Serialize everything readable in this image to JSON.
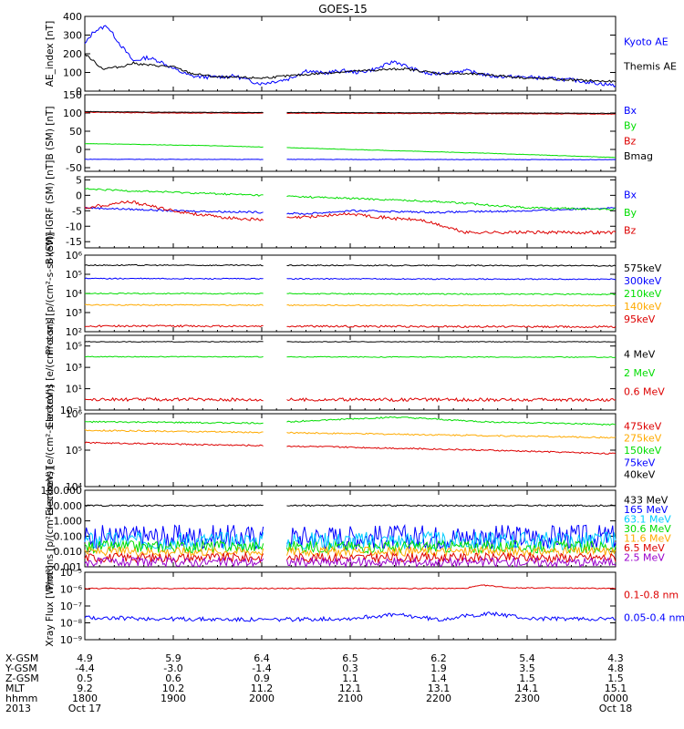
{
  "title": "GOES-15",
  "colors": {
    "black": "#000000",
    "blue": "#0000ff",
    "green": "#00dd00",
    "red": "#dd0000",
    "orange": "#ffaa00",
    "cyan": "#00ccff",
    "darkred": "#aa0000",
    "purple": "#9900cc"
  },
  "ephemeris": {
    "row_labels": [
      "X-GSM",
      "Y-GSM",
      "Z-GSM",
      "MLT",
      "hhmm",
      "2013"
    ],
    "columns": [
      {
        "x": "4.9",
        "y": "-4.4",
        "z": "0.5",
        "mlt": "9.2",
        "hhmm": "1800",
        "date": "Oct 17"
      },
      {
        "x": "5.9",
        "y": "-3.0",
        "z": "0.6",
        "mlt": "10.2",
        "hhmm": "1900",
        "date": ""
      },
      {
        "x": "6.4",
        "y": "-1.4",
        "z": "0.9",
        "mlt": "11.2",
        "hhmm": "2000",
        "date": ""
      },
      {
        "x": "6.5",
        "y": "0.3",
        "z": "1.1",
        "mlt": "12.1",
        "hhmm": "2100",
        "date": ""
      },
      {
        "x": "6.2",
        "y": "1.9",
        "z": "1.4",
        "mlt": "13.1",
        "hhmm": "2200",
        "date": ""
      },
      {
        "x": "5.4",
        "y": "3.5",
        "z": "1.5",
        "mlt": "14.1",
        "hhmm": "2300",
        "date": ""
      },
      {
        "x": "4.3",
        "y": "4.8",
        "z": "1.5",
        "mlt": "15.1",
        "hhmm": "0000",
        "date": "Oct 18"
      }
    ]
  },
  "chart_data": [
    {
      "type": "line",
      "ylabel": "AE_index [nT]",
      "ylim": [
        0,
        400
      ],
      "scale": "linear",
      "ticks": [
        {
          "v": 0,
          "label": "0"
        },
        {
          "v": 100,
          "label": "100"
        },
        {
          "v": 200,
          "label": "200"
        },
        {
          "v": 300,
          "label": "300"
        },
        {
          "v": 400,
          "label": "400"
        }
      ],
      "series": [
        {
          "name": "Kyoto AE",
          "color": "#0000ff",
          "base": 100,
          "noise": 10,
          "pts": [
            [
              0,
              250
            ],
            [
              0.1,
              320
            ],
            [
              0.25,
              350
            ],
            [
              0.4,
              250
            ],
            [
              0.55,
              160
            ],
            [
              0.7,
              180
            ],
            [
              0.85,
              160
            ],
            [
              1.0,
              120
            ],
            [
              1.2,
              80
            ],
            [
              1.4,
              75
            ],
            [
              1.7,
              80
            ],
            [
              1.9,
              50
            ],
            [
              2.0,
              40
            ],
            [
              2.3,
              65
            ],
            [
              2.5,
              110
            ],
            [
              2.7,
              95
            ],
            [
              2.9,
              110
            ],
            [
              3.1,
              100
            ],
            [
              3.3,
              120
            ],
            [
              3.5,
              160
            ],
            [
              3.7,
              120
            ],
            [
              3.9,
              90
            ],
            [
              4.1,
              100
            ],
            [
              4.3,
              110
            ],
            [
              4.6,
              80
            ],
            [
              5.0,
              75
            ],
            [
              5.5,
              60
            ],
            [
              6.0,
              30
            ]
          ]
        },
        {
          "name": "Themis AE",
          "color": "#000000",
          "noise": 6,
          "pts": [
            [
              0,
              200
            ],
            [
              0.2,
              120
            ],
            [
              0.4,
              130
            ],
            [
              0.55,
              150
            ],
            [
              0.7,
              140
            ],
            [
              1.0,
              130
            ],
            [
              1.2,
              95
            ],
            [
              1.5,
              75
            ],
            [
              2.0,
              70
            ],
            [
              2.4,
              85
            ],
            [
              2.8,
              100
            ],
            [
              3.2,
              110
            ],
            [
              3.6,
              120
            ],
            [
              4.0,
              95
            ],
            [
              4.5,
              90
            ],
            [
              5.0,
              70
            ],
            [
              5.5,
              60
            ],
            [
              6.0,
              50
            ]
          ]
        }
      ]
    },
    {
      "type": "line",
      "ylabel": "B (SM) [nT]",
      "ylim": [
        -60,
        150
      ],
      "scale": "linear",
      "ticks": [
        {
          "v": -50,
          "label": "-50"
        },
        {
          "v": 0,
          "label": "0"
        },
        {
          "v": 50,
          "label": "50"
        },
        {
          "v": 100,
          "label": "100"
        },
        {
          "v": 150,
          "label": "150"
        }
      ],
      "series": [
        {
          "name": "Bx",
          "color": "#0000ff",
          "noise": 0.6,
          "pts": [
            [
              0,
              -27
            ],
            [
              6,
              -28
            ]
          ]
        },
        {
          "name": "By",
          "color": "#00dd00",
          "noise": 0.6,
          "pts": [
            [
              0,
              16
            ],
            [
              1.5,
              10
            ],
            [
              3,
              0
            ],
            [
              4.5,
              -10
            ],
            [
              6,
              -22
            ]
          ]
        },
        {
          "name": "Bz",
          "color": "#dd0000",
          "noise": 0.8,
          "pts": [
            [
              0,
              102
            ],
            [
              1.0,
              100
            ],
            [
              3.0,
              99
            ],
            [
              5.0,
              98
            ],
            [
              6.0,
              97
            ]
          ]
        },
        {
          "name": "Bmag",
          "color": "#000000",
          "noise": 0.6,
          "pts": [
            [
              0,
              104
            ],
            [
              1.0,
              102
            ],
            [
              3.0,
              101
            ],
            [
              5.0,
              100
            ],
            [
              6.0,
              99
            ]
          ]
        }
      ]
    },
    {
      "type": "line",
      "ylabel": "B (SM)-IGRF (SM) [nT]",
      "ylim": [
        -17,
        6
      ],
      "scale": "linear",
      "ticks": [
        {
          "v": -15,
          "label": "-15"
        },
        {
          "v": -10,
          "label": "-10"
        },
        {
          "v": -5,
          "label": "-5"
        },
        {
          "v": 0,
          "label": "0"
        },
        {
          "v": 5,
          "label": "5"
        }
      ],
      "series": [
        {
          "name": "Bx",
          "color": "#0000ff",
          "noise": 0.3,
          "pts": [
            [
              0,
              -4
            ],
            [
              1,
              -5
            ],
            [
              2,
              -5.5
            ],
            [
              2.5,
              -6
            ],
            [
              3,
              -5
            ],
            [
              4,
              -5.5
            ],
            [
              5,
              -5
            ],
            [
              6,
              -4
            ]
          ]
        },
        {
          "name": "By",
          "color": "#00dd00",
          "noise": 0.3,
          "pts": [
            [
              0,
              2
            ],
            [
              1,
              1
            ],
            [
              2,
              0
            ],
            [
              3,
              -1
            ],
            [
              4,
              -2
            ],
            [
              5,
              -4
            ],
            [
              6,
              -4.5
            ]
          ]
        },
        {
          "name": "Bz",
          "color": "#dd0000",
          "noise": 0.5,
          "pts": [
            [
              0,
              -4
            ],
            [
              0.5,
              -2
            ],
            [
              1,
              -5
            ],
            [
              1.5,
              -7
            ],
            [
              2,
              -8
            ],
            [
              2.5,
              -7
            ],
            [
              3,
              -6
            ],
            [
              3.5,
              -7.5
            ],
            [
              3.8,
              -8
            ],
            [
              4.3,
              -12
            ],
            [
              5,
              -12
            ],
            [
              6,
              -12
            ]
          ]
        }
      ]
    },
    {
      "type": "line",
      "ylabel": "Protons [p/(cm²-s-sr-keV)]",
      "ylim": [
        100,
        1000000
      ],
      "scale": "log",
      "ticks": [
        {
          "v": 100,
          "label": "10²"
        },
        {
          "v": 1000,
          "label": "10³"
        },
        {
          "v": 10000,
          "label": "10⁴"
        },
        {
          "v": 100000,
          "label": "10⁵"
        },
        {
          "v": 1000000,
          "label": "10⁶"
        }
      ],
      "series": [
        {
          "name": "575keV",
          "color": "#000000",
          "noise": 0.03,
          "pts": [
            [
              0,
              300000
            ],
            [
              6,
              280000
            ]
          ]
        },
        {
          "name": "300keV",
          "color": "#0000ff",
          "noise": 0.03,
          "pts": [
            [
              0,
              60000
            ],
            [
              6,
              55000
            ]
          ]
        },
        {
          "name": "210keV",
          "color": "#00dd00",
          "noise": 0.03,
          "pts": [
            [
              0,
              10000
            ],
            [
              6,
              9000
            ]
          ]
        },
        {
          "name": "140keV",
          "color": "#ffaa00",
          "noise": 0.03,
          "pts": [
            [
              0,
              2500
            ],
            [
              6,
              2300
            ]
          ]
        },
        {
          "name": "95keV",
          "color": "#dd0000",
          "noise": 0.05,
          "pts": [
            [
              0,
              200
            ],
            [
              6,
              180
            ]
          ]
        }
      ]
    },
    {
      "type": "line",
      "ylabel": "Electrons [e/(cm²-s-sr)]",
      "ylim": [
        0.1,
        1000000
      ],
      "scale": "log",
      "ticks": [
        {
          "v": 0.1,
          "label": "10⁻¹"
        },
        {
          "v": 10,
          "label": "10¹"
        },
        {
          "v": 1000,
          "label": "10³"
        },
        {
          "v": 100000,
          "label": "10⁵"
        }
      ],
      "series": [
        {
          "name": "4 MeV",
          "color": "#000000",
          "noise": 0.03,
          "pts": [
            [
              0,
              250000
            ],
            [
              6,
              250000
            ]
          ]
        },
        {
          "name": "2 MeV",
          "color": "#00dd00",
          "noise": 0.04,
          "pts": [
            [
              0,
              10000
            ],
            [
              6,
              9000
            ]
          ]
        },
        {
          "name": "0.6 MeV",
          "color": "#dd0000",
          "noise": 0.15,
          "pts": [
            [
              0,
              1
            ],
            [
              6,
              0.9
            ]
          ]
        }
      ]
    },
    {
      "type": "line",
      "ylabel": "Electrons [e/(cm²-s-sr-keV)]",
      "ylim": [
        10000,
        1000000
      ],
      "scale": "log",
      "ticks": [
        {
          "v": 10000,
          "label": "10⁴"
        },
        {
          "v": 100000,
          "label": "10⁵"
        },
        {
          "v": 1000000,
          "label": "10⁶"
        }
      ],
      "series": [
        {
          "name": "475keV",
          "color": "#dd0000",
          "noise": 0.02,
          "pts": [
            [
              0,
              160000
            ],
            [
              6,
              80000
            ]
          ]
        },
        {
          "name": "275keV",
          "color": "#ffaa00",
          "noise": 0.02,
          "pts": [
            [
              0,
              350000
            ],
            [
              6,
              220000
            ]
          ]
        },
        {
          "name": "150keV",
          "color": "#00dd00",
          "noise": 0.02,
          "pts": [
            [
              0,
              600000
            ],
            [
              2,
              550000
            ],
            [
              3.5,
              800000
            ],
            [
              4.5,
              600000
            ],
            [
              6,
              500000
            ]
          ]
        },
        {
          "name": "75keV",
          "color": "#0000ff",
          "noise": 0.02,
          "pts": [
            [
              0,
              1200000
            ],
            [
              6,
              1200000
            ]
          ]
        },
        {
          "name": "40keV",
          "color": "#000000",
          "noise": 0.02,
          "pts": [
            [
              0,
              2000000
            ],
            [
              6,
              2000000
            ]
          ]
        }
      ]
    },
    {
      "type": "line",
      "ylabel": "Protons [p/(cm²-s-sr-keV)]",
      "ylim": [
        0.001,
        100
      ],
      "scale": "log",
      "ticks": [
        {
          "v": 0.001,
          "label": "0.001"
        },
        {
          "v": 0.01,
          "label": "0.010"
        },
        {
          "v": 0.1,
          "label": "0.100"
        },
        {
          "v": 1,
          "label": "1.000"
        },
        {
          "v": 10,
          "label": "10.000"
        },
        {
          "v": 100,
          "label": "100.000"
        }
      ],
      "series": [
        {
          "name": "433 MeV",
          "color": "#000000",
          "noise": 0.05,
          "pts": [
            [
              0,
              10
            ],
            [
              6,
              10
            ]
          ]
        },
        {
          "name": "165 MeV",
          "color": "#0000ff",
          "noise": 0.8,
          "pts": [
            [
              0,
              0.09
            ],
            [
              6,
              0.09
            ]
          ]
        },
        {
          "name": "63.1 MeV",
          "color": "#00ccff",
          "noise": 0.6,
          "pts": [
            [
              0,
              0.05
            ],
            [
              6,
              0.05
            ]
          ]
        },
        {
          "name": "30.6 MeV",
          "color": "#00dd00",
          "noise": 0.4,
          "pts": [
            [
              0,
              0.02
            ],
            [
              6,
              0.02
            ]
          ]
        },
        {
          "name": "11.6 MeV",
          "color": "#ffaa00",
          "noise": 0.3,
          "pts": [
            [
              0,
              0.01
            ],
            [
              6,
              0.01
            ]
          ]
        },
        {
          "name": "6.5 MeV",
          "color": "#dd0000",
          "noise": 0.3,
          "pts": [
            [
              0,
              0.004
            ],
            [
              6,
              0.004
            ]
          ]
        },
        {
          "name": "2.5 MeV",
          "color": "#9900cc",
          "noise": 0.3,
          "pts": [
            [
              0,
              0.002
            ],
            [
              6,
              0.002
            ]
          ]
        }
      ]
    },
    {
      "type": "line",
      "ylabel": "Xray Flux [W/m²]",
      "ylim": [
        1e-09,
        1e-05
      ],
      "scale": "log",
      "ticks": [
        {
          "v": 1e-09,
          "label": "10⁻⁹"
        },
        {
          "v": 1e-08,
          "label": "10⁻⁸"
        },
        {
          "v": 1e-07,
          "label": "10⁻⁷"
        },
        {
          "v": 1e-06,
          "label": "10⁻⁶"
        },
        {
          "v": 1e-05,
          "label": "10⁻⁵"
        }
      ],
      "series": [
        {
          "name": "0.1-0.8 nm",
          "color": "#dd0000",
          "noise": 0.03,
          "pts": [
            [
              0,
              1.1e-06
            ],
            [
              4.3,
              1.1e-06
            ],
            [
              4.5,
              1.7e-06
            ],
            [
              4.8,
              1.2e-06
            ],
            [
              6,
              1.1e-06
            ]
          ]
        },
        {
          "name": "0.05-0.4 nm",
          "color": "#0000ff",
          "noise": 0.12,
          "pts": [
            [
              0,
              2e-08
            ],
            [
              1,
              1.7e-08
            ],
            [
              2,
              1.5e-08
            ],
            [
              3,
              1.8e-08
            ],
            [
              3.5,
              3e-08
            ],
            [
              4,
              1.5e-08
            ],
            [
              4.6,
              3.5e-08
            ],
            [
              5,
              1.8e-08
            ],
            [
              6,
              1.7e-08
            ]
          ]
        }
      ]
    }
  ]
}
